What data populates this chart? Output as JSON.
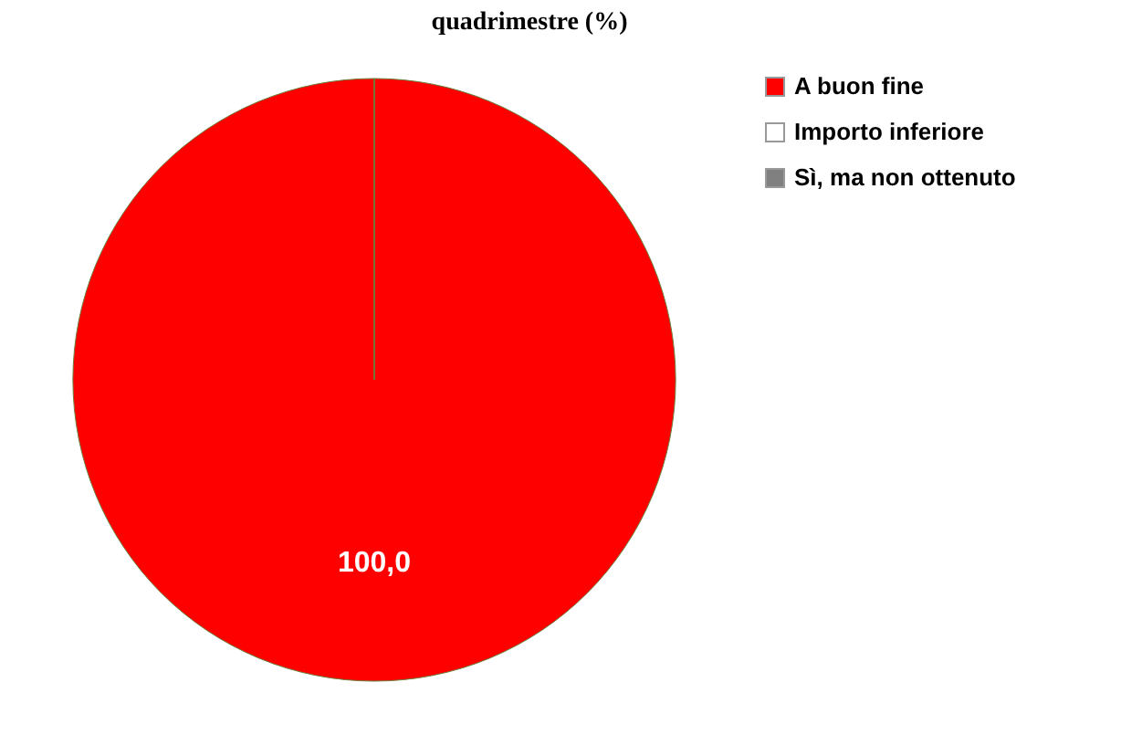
{
  "chart_data": {
    "type": "pie",
    "title": "quadrimestre (%)",
    "categories": [
      "A buon fine",
      "Importo inferiore",
      "Sì, ma non ottenuto"
    ],
    "values": [
      100,
      0,
      0
    ],
    "colors": [
      "#ff0000",
      "#ffffff",
      "#808080"
    ],
    "value_labels": [
      "100,0",
      null,
      null
    ],
    "legend": "top right"
  }
}
